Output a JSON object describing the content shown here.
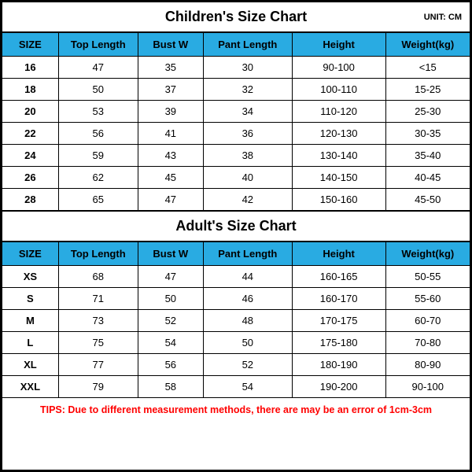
{
  "unit_label": "UNIT: CM",
  "columns": [
    "SIZE",
    "Top Length",
    "Bust W",
    "Pant Length",
    "Height",
    "Weight(kg)"
  ],
  "children": {
    "title": "Children's Size Chart",
    "rows": [
      {
        "size": "16",
        "top": "47",
        "bust": "35",
        "pant": "30",
        "height": "90-100",
        "weight": "<15"
      },
      {
        "size": "18",
        "top": "50",
        "bust": "37",
        "pant": "32",
        "height": "100-110",
        "weight": "15-25"
      },
      {
        "size": "20",
        "top": "53",
        "bust": "39",
        "pant": "34",
        "height": "110-120",
        "weight": "25-30"
      },
      {
        "size": "22",
        "top": "56",
        "bust": "41",
        "pant": "36",
        "height": "120-130",
        "weight": "30-35"
      },
      {
        "size": "24",
        "top": "59",
        "bust": "43",
        "pant": "38",
        "height": "130-140",
        "weight": "35-40"
      },
      {
        "size": "26",
        "top": "62",
        "bust": "45",
        "pant": "40",
        "height": "140-150",
        "weight": "40-45"
      },
      {
        "size": "28",
        "top": "65",
        "bust": "47",
        "pant": "42",
        "height": "150-160",
        "weight": "45-50"
      }
    ]
  },
  "adult": {
    "title": "Adult's Size Chart",
    "rows": [
      {
        "size": "XS",
        "top": "68",
        "bust": "47",
        "pant": "44",
        "height": "160-165",
        "weight": "50-55"
      },
      {
        "size": "S",
        "top": "71",
        "bust": "50",
        "pant": "46",
        "height": "160-170",
        "weight": "55-60"
      },
      {
        "size": "M",
        "top": "73",
        "bust": "52",
        "pant": "48",
        "height": "170-175",
        "weight": "60-70"
      },
      {
        "size": "L",
        "top": "75",
        "bust": "54",
        "pant": "50",
        "height": "175-180",
        "weight": "70-80"
      },
      {
        "size": "XL",
        "top": "77",
        "bust": "56",
        "pant": "52",
        "height": "180-190",
        "weight": "80-90"
      },
      {
        "size": "XXL",
        "top": "79",
        "bust": "58",
        "pant": "54",
        "height": "190-200",
        "weight": "90-100"
      }
    ]
  },
  "tips": "TIPS: Due to different measurement methods, there are may be an error of 1cm-3cm",
  "colors": {
    "header_bg": "#29abe2",
    "border": "#000000",
    "tips_text": "#ff0000",
    "background": "#ffffff"
  }
}
